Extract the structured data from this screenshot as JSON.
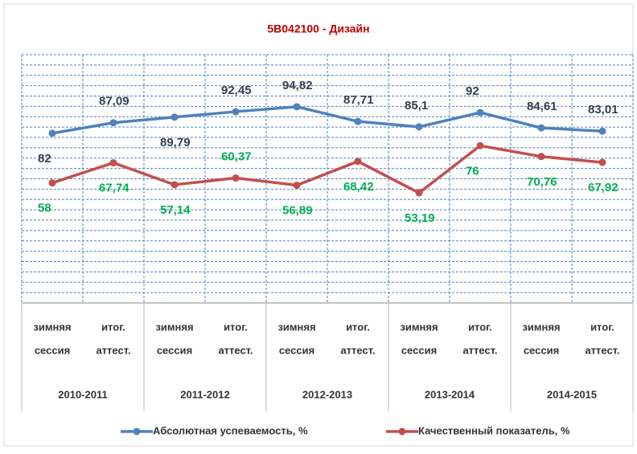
{
  "chart_data": {
    "type": "line",
    "title": "5В042100 - Дизайн",
    "categories": [
      [
        "зимняя",
        "сессия"
      ],
      [
        "итог.",
        "аттест."
      ],
      [
        "зимняя",
        "сессия"
      ],
      [
        "итог.",
        "аттест."
      ],
      [
        "зимняя",
        "сессия"
      ],
      [
        "итог.",
        "аттест."
      ],
      [
        "зимняя",
        "сессия"
      ],
      [
        "итог.",
        "аттест."
      ],
      [
        "зимняя",
        "сессия"
      ],
      [
        "итог.",
        "аттест."
      ]
    ],
    "groups": [
      "2010-2011",
      "2011-2012",
      "2012-2013",
      "2013-2014",
      "2014-2015"
    ],
    "series": [
      {
        "name": "Абсолютная успеваемость, %",
        "color": "#4f81bd",
        "label_color": "#333f50",
        "values": [
          82,
          87.09,
          89.79,
          92.45,
          94.82,
          87.71,
          85.1,
          92,
          84.61,
          83.01
        ],
        "value_labels": [
          "82",
          "87,09",
          "89,79",
          "92,45",
          "94,82",
          "87,71",
          "85,1",
          "92",
          "84,61",
          "83,01"
        ]
      },
      {
        "name": "Качественный показатель, %",
        "color": "#c0504d",
        "label_color": "#00b050",
        "values": [
          58,
          67.74,
          57.14,
          60.37,
          56.89,
          68.42,
          53.19,
          76,
          70.76,
          67.92
        ],
        "value_labels": [
          "58",
          "67,74",
          "57,14",
          "60,37",
          "56,89",
          "68,42",
          "53,19",
          "76",
          "70,76",
          "67,92"
        ]
      }
    ],
    "ylim": [
      0,
      120
    ],
    "yticks": [
      0,
      20,
      40,
      60,
      80,
      100,
      120
    ],
    "grid": true,
    "legend": "bottom"
  }
}
